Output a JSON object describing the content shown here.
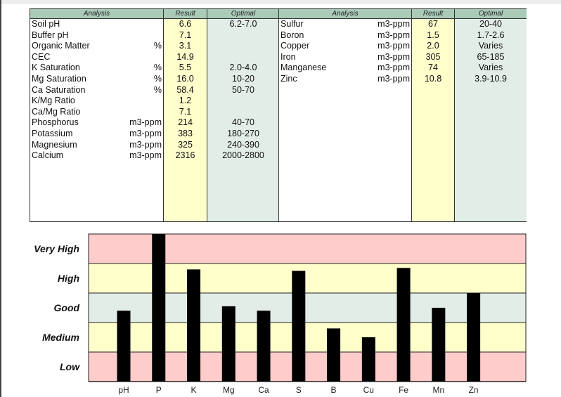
{
  "table_left": {
    "headers": {
      "analysis": "Analysis",
      "result": "Result",
      "optimal": "Optimal"
    },
    "rows": [
      {
        "name": "Soil pH",
        "unit": "",
        "result": "6.6",
        "optimal": "6.2-7.0"
      },
      {
        "name": "Buffer pH",
        "unit": "",
        "result": "7.1",
        "optimal": ""
      },
      {
        "name": "Organic Matter",
        "unit": "%",
        "result": "3.1",
        "optimal": ""
      },
      {
        "name": "CEC",
        "unit": "",
        "result": "14.9",
        "optimal": ""
      },
      {
        "name": "K Saturation",
        "unit": "%",
        "result": "5.5",
        "optimal": "2.0-4.0"
      },
      {
        "name": "Mg Saturation",
        "unit": "%",
        "result": "16.0",
        "optimal": "10-20"
      },
      {
        "name": "Ca Saturation",
        "unit": "%",
        "result": "58.4",
        "optimal": "50-70"
      },
      {
        "name": "K/Mg Ratio",
        "unit": "",
        "result": "1.2",
        "optimal": ""
      },
      {
        "name": "Ca/Mg Ratio",
        "unit": "",
        "result": "7.1",
        "optimal": ""
      },
      {
        "name": "Phosphorus",
        "unit": "m3-ppm",
        "result": "214",
        "optimal": "40-70"
      },
      {
        "name": "Potassium",
        "unit": "m3-ppm",
        "result": "383",
        "optimal": "180-270"
      },
      {
        "name": "Magnesium",
        "unit": "m3-ppm",
        "result": "325",
        "optimal": "240-390"
      },
      {
        "name": "Calcium",
        "unit": "m3-ppm",
        "result": "2316",
        "optimal": "2000-2800"
      }
    ]
  },
  "table_right": {
    "headers": {
      "analysis": "Analysis",
      "result": "Result",
      "optimal": "Optimal"
    },
    "rows": [
      {
        "name": "Sulfur",
        "unit": "m3-ppm",
        "result": "67",
        "optimal": "20-40"
      },
      {
        "name": "Boron",
        "unit": "m3-ppm",
        "result": "1.5",
        "optimal": "1.7-2.6"
      },
      {
        "name": "Copper",
        "unit": "m3-ppm",
        "result": "2.0",
        "optimal": "Varies"
      },
      {
        "name": "Iron",
        "unit": "m3-ppm",
        "result": "305",
        "optimal": "65-185"
      },
      {
        "name": "Manganese",
        "unit": "m3-ppm",
        "result": "74",
        "optimal": "Varies"
      },
      {
        "name": "Zinc",
        "unit": "m3-ppm",
        "result": "10.8",
        "optimal": "3.9-10.9"
      }
    ]
  },
  "colors": {
    "header": "#a9cbb7",
    "result_col": "#ffffcc",
    "optimal_col": "#e3ede8",
    "band_low": "#ffcccc",
    "band_medium": "#ffffcc",
    "band_good": "#e3ede8",
    "bar": "#000000"
  },
  "chart_data": {
    "type": "bar",
    "categories": [
      "pH",
      "P",
      "K",
      "Mg",
      "Ca",
      "S",
      "B",
      "Cu",
      "Fe",
      "Mn",
      "Zn"
    ],
    "values": [
      2.4,
      5.0,
      3.8,
      2.55,
      2.4,
      3.75,
      1.8,
      1.5,
      3.85,
      2.5,
      3.0
    ],
    "ylim": [
      0,
      5
    ],
    "bands": [
      "Low",
      "Medium",
      "Good",
      "High",
      "Very High"
    ],
    "grid": false,
    "legend": "none"
  }
}
